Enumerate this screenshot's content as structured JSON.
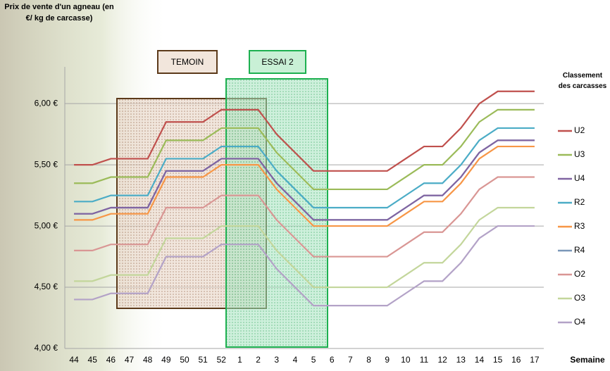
{
  "chart_data": {
    "type": "line",
    "y_axis_label": "Prix de vente d'un agneau (en €/ kg de carcasse)",
    "x_axis_label": "Semaine",
    "legend_title": "Classement des carcasses",
    "legend_position": "right",
    "grid": true,
    "annotations": [
      "TEMOIN",
      "ESSAI 2"
    ],
    "categories": [
      "44",
      "45",
      "46",
      "47",
      "48",
      "49",
      "50",
      "51",
      "52",
      "1",
      "2",
      "3",
      "4",
      "5",
      "6",
      "7",
      "8",
      "9",
      "10",
      "11",
      "12",
      "13",
      "14",
      "15",
      "16",
      "17"
    ],
    "ylim": [
      4,
      6.3
    ],
    "yticks": [
      {
        "value": 4,
        "label": "4,00 €"
      },
      {
        "value": 4.5,
        "label": "4,50 €"
      },
      {
        "value": 5,
        "label": "5,00 €"
      },
      {
        "value": 5.5,
        "label": "5,50 €"
      },
      {
        "value": 6,
        "label": "6,00 €"
      }
    ],
    "series": [
      {
        "name": "U2",
        "color": "#c0504d",
        "values": [
          5.5,
          5.5,
          5.55,
          5.55,
          5.55,
          5.85,
          5.85,
          5.85,
          5.95,
          5.95,
          5.95,
          5.75,
          5.6,
          5.45,
          5.45,
          5.45,
          5.45,
          5.45,
          5.55,
          5.65,
          5.65,
          5.8,
          6.0,
          6.1,
          6.1,
          6.1
        ]
      },
      {
        "name": "U3",
        "color": "#9bbb59",
        "values": [
          5.35,
          5.35,
          5.4,
          5.4,
          5.4,
          5.7,
          5.7,
          5.7,
          5.8,
          5.8,
          5.8,
          5.6,
          5.45,
          5.3,
          5.3,
          5.3,
          5.3,
          5.3,
          5.4,
          5.5,
          5.5,
          5.65,
          5.85,
          5.95,
          5.95,
          5.95
        ]
      },
      {
        "name": "U4",
        "color": "#8064a2",
        "values": [
          5.1,
          5.1,
          5.15,
          5.15,
          5.15,
          5.45,
          5.45,
          5.45,
          5.55,
          5.55,
          5.55,
          5.35,
          5.2,
          5.05,
          5.05,
          5.05,
          5.05,
          5.05,
          5.15,
          5.25,
          5.25,
          5.4,
          5.6,
          5.7,
          5.7,
          5.7
        ]
      },
      {
        "name": "R2",
        "color": "#4bacc6",
        "values": [
          5.2,
          5.2,
          5.25,
          5.25,
          5.25,
          5.55,
          5.55,
          5.55,
          5.65,
          5.65,
          5.65,
          5.45,
          5.3,
          5.15,
          5.15,
          5.15,
          5.15,
          5.15,
          5.25,
          5.35,
          5.35,
          5.5,
          5.7,
          5.8,
          5.8,
          5.8
        ]
      },
      {
        "name": "R3",
        "color": "#f79646",
        "values": [
          5.05,
          5.05,
          5.1,
          5.1,
          5.1,
          5.4,
          5.4,
          5.4,
          5.5,
          5.5,
          5.5,
          5.3,
          5.15,
          5.0,
          5.0,
          5.0,
          5.0,
          5.0,
          5.1,
          5.2,
          5.2,
          5.35,
          5.55,
          5.65,
          5.65,
          5.65
        ]
      },
      {
        "name": "R4",
        "color": "#7a97b8",
        "values": [
          5.1,
          5.1,
          5.15,
          5.15,
          5.15,
          5.45,
          5.45,
          5.45,
          5.55,
          5.55,
          5.55,
          5.35,
          5.2,
          5.05,
          5.05,
          5.05,
          5.05,
          5.05,
          5.15,
          5.25,
          5.25,
          5.4,
          5.6,
          5.7,
          5.7,
          5.7
        ]
      },
      {
        "name": "O2",
        "color": "#d99694",
        "values": [
          4.8,
          4.8,
          4.85,
          4.85,
          4.85,
          5.15,
          5.15,
          5.15,
          5.25,
          5.25,
          5.25,
          5.05,
          4.9,
          4.75,
          4.75,
          4.75,
          4.75,
          4.75,
          4.85,
          4.95,
          4.95,
          5.1,
          5.3,
          5.4,
          5.4,
          5.4
        ]
      },
      {
        "name": "O3",
        "color": "#c3d69b",
        "values": [
          4.55,
          4.55,
          4.6,
          4.6,
          4.6,
          4.9,
          4.9,
          4.9,
          5.0,
          5.0,
          5.0,
          4.8,
          4.65,
          4.5,
          4.5,
          4.5,
          4.5,
          4.5,
          4.6,
          4.7,
          4.7,
          4.85,
          5.05,
          5.15,
          5.15,
          5.15
        ]
      },
      {
        "name": "O4",
        "color": "#b3a2c7",
        "values": [
          4.4,
          4.4,
          4.45,
          4.45,
          4.45,
          4.75,
          4.75,
          4.75,
          4.85,
          4.85,
          4.85,
          4.65,
          4.5,
          4.35,
          4.35,
          4.35,
          4.35,
          4.35,
          4.45,
          4.55,
          4.55,
          4.7,
          4.9,
          5.0,
          5.0,
          5.0
        ]
      }
    ]
  }
}
